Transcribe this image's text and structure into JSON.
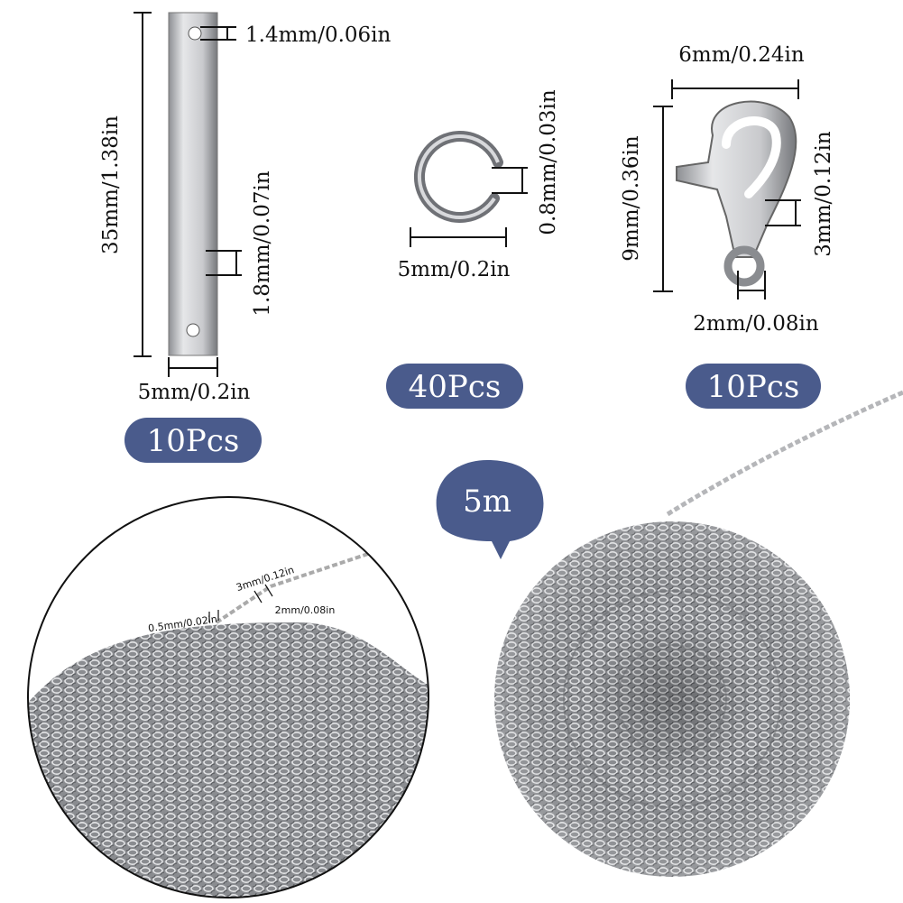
{
  "bar": {
    "dimensions": [
      "35mm/1.38in",
      "1.4mm/0.06in",
      "1.8mm/0.07in",
      "5mm/0.2in"
    ],
    "quantity": "10Pcs"
  },
  "jump_ring": {
    "dimensions": [
      "0.8mm/0.03in",
      "5mm/0.2in"
    ],
    "quantity": "40Pcs"
  },
  "clasp": {
    "dimensions": [
      "6mm/0.24in",
      "9mm/0.36in",
      "3mm/0.12in",
      "2mm/0.08in"
    ],
    "quantity": "10Pcs"
  },
  "chain": {
    "length": "5m",
    "detail_dimensions": [
      "0.5mm/0.02in",
      "3mm/0.12in",
      "2mm/0.08in"
    ]
  }
}
